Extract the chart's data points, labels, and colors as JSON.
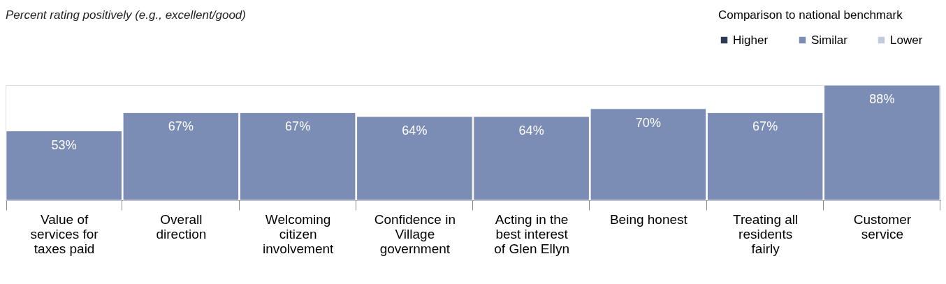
{
  "chart_data": {
    "type": "bar",
    "title": "Percent rating positively (e.g., excellent/good)",
    "legend_title": "Comparison to national benchmark",
    "categories": [
      "Value of services for taxes paid",
      "Overall direction",
      "Welcoming citizen involvement",
      "Confidence in Village government",
      "Acting in the best interest of Glen Ellyn",
      "Being honest",
      "Treating all residents fairly",
      "Customer service"
    ],
    "series": [
      {
        "name": "Higher",
        "color": "#2e3b56",
        "values": [
          null,
          null,
          null,
          null,
          null,
          null,
          null,
          null
        ]
      },
      {
        "name": "Similar",
        "color": "#7b8cb5",
        "values": [
          53,
          67,
          67,
          64,
          64,
          70,
          67,
          88
        ],
        "value_labels": [
          "53%",
          "67%",
          "67%",
          "64%",
          "64%",
          "70%",
          "67%",
          "88%"
        ]
      },
      {
        "name": "Lower",
        "color": "#c3cadc",
        "values": [
          null,
          null,
          null,
          null,
          null,
          null,
          null,
          null
        ]
      }
    ],
    "legend": "top right"
  }
}
